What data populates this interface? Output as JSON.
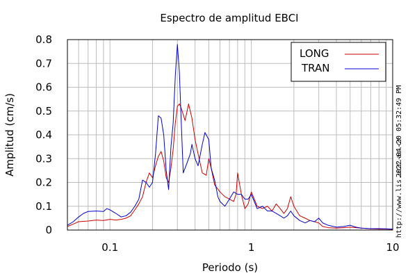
{
  "chart_data": {
    "type": "line",
    "title": "Espectro de amplitud EBCI",
    "xlabel": "Periodo (s)",
    "ylabel": "Amplitud (cm/s)",
    "xscale": "log",
    "xlim": [
      0.05,
      10
    ],
    "ylim": [
      0,
      0.8
    ],
    "xticks": [
      {
        "value": 0.1,
        "label": "0.1"
      },
      {
        "value": 1,
        "label": "1"
      },
      {
        "value": 10,
        "label": "10"
      }
    ],
    "yticks": [
      {
        "value": 0,
        "label": "0"
      },
      {
        "value": 0.1,
        "label": "0.1"
      },
      {
        "value": 0.2,
        "label": "0.2"
      },
      {
        "value": 0.3,
        "label": "0.3"
      },
      {
        "value": 0.4,
        "label": "0.4"
      },
      {
        "value": 0.5,
        "label": "0.5"
      },
      {
        "value": 0.6,
        "label": "0.6"
      },
      {
        "value": 0.7,
        "label": "0.7"
      },
      {
        "value": 0.8,
        "label": "0.8"
      }
    ],
    "grid": true,
    "legend_position": "top-right",
    "series": [
      {
        "name": "LONG",
        "color": "#cc0000",
        "points": [
          [
            0.05,
            0.015
          ],
          [
            0.055,
            0.025
          ],
          [
            0.06,
            0.035
          ],
          [
            0.07,
            0.038
          ],
          [
            0.08,
            0.042
          ],
          [
            0.09,
            0.04
          ],
          [
            0.1,
            0.045
          ],
          [
            0.11,
            0.042
          ],
          [
            0.12,
            0.045
          ],
          [
            0.13,
            0.05
          ],
          [
            0.14,
            0.06
          ],
          [
            0.15,
            0.085
          ],
          [
            0.16,
            0.11
          ],
          [
            0.17,
            0.14
          ],
          [
            0.18,
            0.2
          ],
          [
            0.19,
            0.24
          ],
          [
            0.2,
            0.22
          ],
          [
            0.21,
            0.27
          ],
          [
            0.22,
            0.31
          ],
          [
            0.23,
            0.33
          ],
          [
            0.24,
            0.29
          ],
          [
            0.25,
            0.22
          ],
          [
            0.26,
            0.2
          ],
          [
            0.27,
            0.26
          ],
          [
            0.28,
            0.34
          ],
          [
            0.29,
            0.45
          ],
          [
            0.3,
            0.52
          ],
          [
            0.31,
            0.53
          ],
          [
            0.32,
            0.51
          ],
          [
            0.34,
            0.46
          ],
          [
            0.36,
            0.53
          ],
          [
            0.38,
            0.47
          ],
          [
            0.4,
            0.38
          ],
          [
            0.42,
            0.32
          ],
          [
            0.45,
            0.24
          ],
          [
            0.48,
            0.23
          ],
          [
            0.5,
            0.3
          ],
          [
            0.52,
            0.26
          ],
          [
            0.55,
            0.19
          ],
          [
            0.6,
            0.16
          ],
          [
            0.65,
            0.14
          ],
          [
            0.7,
            0.13
          ],
          [
            0.75,
            0.12
          ],
          [
            0.78,
            0.15
          ],
          [
            0.8,
            0.24
          ],
          [
            0.85,
            0.15
          ],
          [
            0.9,
            0.09
          ],
          [
            0.95,
            0.11
          ],
          [
            1.0,
            0.16
          ],
          [
            1.1,
            0.1
          ],
          [
            1.2,
            0.09
          ],
          [
            1.3,
            0.1
          ],
          [
            1.4,
            0.08
          ],
          [
            1.5,
            0.11
          ],
          [
            1.6,
            0.09
          ],
          [
            1.7,
            0.07
          ],
          [
            1.8,
            0.09
          ],
          [
            1.9,
            0.14
          ],
          [
            2.0,
            0.1
          ],
          [
            2.2,
            0.06
          ],
          [
            2.4,
            0.05
          ],
          [
            2.6,
            0.04
          ],
          [
            2.8,
            0.035
          ],
          [
            3.0,
            0.03
          ],
          [
            3.2,
            0.015
          ],
          [
            3.5,
            0.01
          ],
          [
            4.0,
            0.008
          ],
          [
            4.5,
            0.01
          ],
          [
            5.0,
            0.012
          ],
          [
            6.0,
            0.008
          ],
          [
            7.0,
            0.005
          ],
          [
            8.0,
            0.004
          ],
          [
            9.0,
            0.004
          ],
          [
            10.0,
            0.003
          ]
        ]
      },
      {
        "name": "TRAN",
        "color": "#0000cc",
        "points": [
          [
            0.05,
            0.02
          ],
          [
            0.055,
            0.035
          ],
          [
            0.06,
            0.055
          ],
          [
            0.065,
            0.07
          ],
          [
            0.07,
            0.078
          ],
          [
            0.08,
            0.08
          ],
          [
            0.09,
            0.078
          ],
          [
            0.095,
            0.09
          ],
          [
            0.1,
            0.085
          ],
          [
            0.11,
            0.07
          ],
          [
            0.12,
            0.055
          ],
          [
            0.13,
            0.06
          ],
          [
            0.14,
            0.075
          ],
          [
            0.15,
            0.1
          ],
          [
            0.16,
            0.13
          ],
          [
            0.17,
            0.21
          ],
          [
            0.18,
            0.2
          ],
          [
            0.19,
            0.18
          ],
          [
            0.2,
            0.2
          ],
          [
            0.21,
            0.32
          ],
          [
            0.22,
            0.48
          ],
          [
            0.23,
            0.47
          ],
          [
            0.24,
            0.4
          ],
          [
            0.25,
            0.25
          ],
          [
            0.26,
            0.17
          ],
          [
            0.27,
            0.35
          ],
          [
            0.28,
            0.45
          ],
          [
            0.29,
            0.65
          ],
          [
            0.3,
            0.78
          ],
          [
            0.31,
            0.66
          ],
          [
            0.32,
            0.44
          ],
          [
            0.33,
            0.24
          ],
          [
            0.35,
            0.28
          ],
          [
            0.37,
            0.32
          ],
          [
            0.38,
            0.36
          ],
          [
            0.4,
            0.3
          ],
          [
            0.42,
            0.27
          ],
          [
            0.45,
            0.36
          ],
          [
            0.47,
            0.41
          ],
          [
            0.5,
            0.38
          ],
          [
            0.52,
            0.26
          ],
          [
            0.55,
            0.21
          ],
          [
            0.58,
            0.14
          ],
          [
            0.6,
            0.12
          ],
          [
            0.65,
            0.1
          ],
          [
            0.7,
            0.13
          ],
          [
            0.75,
            0.16
          ],
          [
            0.8,
            0.15
          ],
          [
            0.85,
            0.15
          ],
          [
            0.9,
            0.13
          ],
          [
            0.95,
            0.13
          ],
          [
            1.0,
            0.15
          ],
          [
            1.1,
            0.09
          ],
          [
            1.2,
            0.1
          ],
          [
            1.3,
            0.08
          ],
          [
            1.4,
            0.08
          ],
          [
            1.5,
            0.07
          ],
          [
            1.6,
            0.06
          ],
          [
            1.7,
            0.05
          ],
          [
            1.8,
            0.06
          ],
          [
            1.9,
            0.08
          ],
          [
            2.0,
            0.06
          ],
          [
            2.2,
            0.04
          ],
          [
            2.4,
            0.03
          ],
          [
            2.6,
            0.04
          ],
          [
            2.8,
            0.035
          ],
          [
            3.0,
            0.05
          ],
          [
            3.2,
            0.03
          ],
          [
            3.5,
            0.02
          ],
          [
            4.0,
            0.012
          ],
          [
            4.5,
            0.015
          ],
          [
            5.0,
            0.02
          ],
          [
            5.5,
            0.012
          ],
          [
            6.0,
            0.008
          ],
          [
            7.0,
            0.006
          ],
          [
            8.0,
            0.006
          ],
          [
            9.0,
            0.005
          ],
          [
            10.0,
            0.004
          ]
        ]
      }
    ]
  },
  "side_url": "http://www.lis.ucr.ac.cr",
  "side_timestamp": "2022-04-20 05:32:49 PM"
}
